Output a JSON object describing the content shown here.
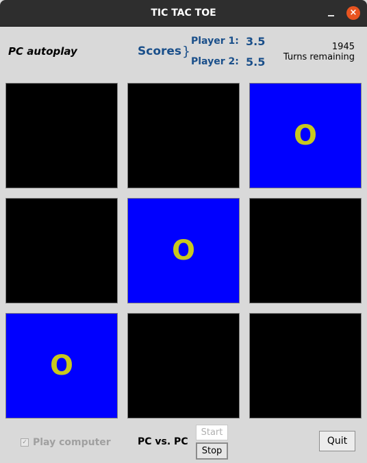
{
  "window": {
    "title": "TIC TAC TOE",
    "minimize_icon": "minimize-icon",
    "close_icon": "close-icon",
    "close_glyph": "×"
  },
  "header": {
    "mode_label": "PC autoplay",
    "scores_label": "Scores",
    "player1_label": "Player 1:",
    "player1_score": "3.5",
    "player2_label": "Player 2:",
    "player2_score": "5.5",
    "turns_count": "1945",
    "turns_label": "Turns remaining"
  },
  "board": {
    "cells": [
      {
        "mark": "",
        "color": "#000000"
      },
      {
        "mark": "",
        "color": "#000000"
      },
      {
        "mark": "O",
        "color": "#0000ff"
      },
      {
        "mark": "",
        "color": "#000000"
      },
      {
        "mark": "O",
        "color": "#0000ff"
      },
      {
        "mark": "",
        "color": "#000000"
      },
      {
        "mark": "O",
        "color": "#0000ff"
      },
      {
        "mark": "",
        "color": "#000000"
      },
      {
        "mark": "",
        "color": "#000000"
      }
    ],
    "mark_color": "#c8c81e"
  },
  "footer": {
    "play_computer_label": "Play computer",
    "play_computer_checked": true,
    "check_glyph": "✓",
    "mode_text": "PC vs. PC",
    "start_label": "Start",
    "stop_label": "Stop",
    "quit_label": "Quit"
  },
  "colors": {
    "title_bar": "#2e2e2e",
    "close_button": "#e95420",
    "score_text": "#1a4f8a",
    "background": "#d9d9d9"
  }
}
